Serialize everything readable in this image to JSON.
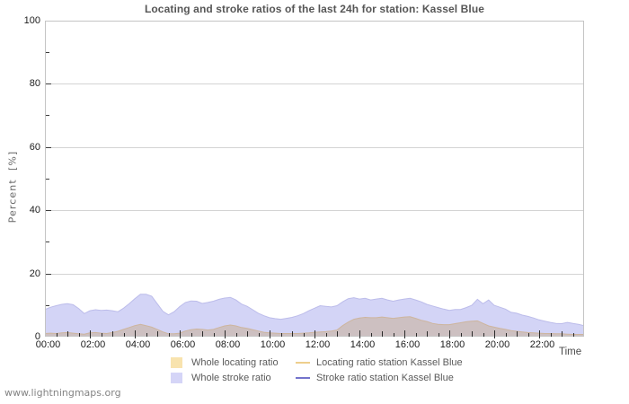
{
  "chart": {
    "title": "Locating and stroke ratios of the last 24h for station: Kassel Blue",
    "ylabel": "Percent  [%]",
    "xlabel": "Time"
  },
  "footer": {
    "watermark": "www.lightningmaps.org"
  },
  "legend": {
    "items": [
      {
        "type": "box",
        "color": "#f8e3ae",
        "label": "Whole locating ratio"
      },
      {
        "type": "box",
        "color": "#d5d5f7",
        "label": "Whole stroke ratio"
      },
      {
        "type": "line",
        "color": "#eecf8c",
        "label": "Locating ratio station Kassel Blue"
      },
      {
        "type": "line",
        "color": "#7474cc",
        "label": "Stroke ratio station Kassel Blue"
      }
    ]
  },
  "chart_data": {
    "type": "area",
    "title": "Locating and stroke ratios of the last 24h for station: Kassel Blue",
    "xlabel": "Time",
    "ylabel": "Percent  [%]",
    "ylim": [
      0,
      100
    ],
    "yticks": [
      0,
      20,
      40,
      60,
      80,
      100
    ],
    "xticks": [
      "00:00",
      "02:00",
      "04:00",
      "06:00",
      "08:00",
      "10:00",
      "12:00",
      "14:00",
      "16:00",
      "18:00",
      "20:00",
      "22:00"
    ],
    "x_hours": {
      "start": 0,
      "end": 24,
      "step": 0.25
    },
    "grid": "horizontal",
    "legend_position": "bottom",
    "series": [
      {
        "name": "Whole stroke ratio",
        "fill": "#d3d4f6",
        "edge": "#bcbcea",
        "values": [
          8.6,
          9.3,
          9.8,
          10.2,
          10.4,
          10.1,
          8.9,
          7.3,
          8.2,
          8.5,
          8.3,
          8.4,
          8.2,
          7.9,
          9.0,
          10.4,
          12.0,
          13.4,
          13.4,
          12.8,
          10.4,
          8.0,
          6.9,
          7.9,
          9.5,
          10.8,
          11.3,
          11.2,
          10.5,
          10.8,
          11.2,
          11.8,
          12.2,
          12.4,
          11.6,
          10.3,
          9.6,
          8.5,
          7.4,
          6.6,
          6.0,
          5.7,
          5.5,
          5.8,
          6.1,
          6.6,
          7.3,
          8.2,
          9.0,
          9.8,
          9.6,
          9.4,
          9.8,
          11.0,
          12.0,
          12.3,
          11.9,
          12.1,
          11.6,
          11.9,
          12.1,
          11.6,
          11.2,
          11.6,
          11.9,
          12.1,
          11.6,
          11.0,
          10.2,
          9.7,
          9.2,
          8.7,
          8.3,
          8.6,
          8.6,
          9.2,
          9.9,
          11.8,
          10.4,
          11.6,
          9.9,
          9.3,
          8.7,
          7.7,
          7.4,
          6.8,
          6.4,
          5.9,
          5.3,
          4.9,
          4.5,
          4.2,
          4.1,
          4.5,
          4.2,
          3.9,
          3.5
        ]
      },
      {
        "name": "Whole locating ratio",
        "fill": "#cdc0c1",
        "edge": "#cdb59e",
        "values": [
          1.0,
          1.1,
          1.0,
          1.2,
          1.3,
          1.1,
          0.9,
          0.8,
          1.2,
          1.3,
          1.1,
          1.0,
          1.3,
          1.7,
          2.3,
          2.9,
          3.5,
          3.9,
          3.5,
          3.0,
          2.3,
          1.5,
          0.9,
          0.9,
          1.1,
          1.8,
          2.2,
          2.4,
          2.3,
          2.1,
          2.3,
          2.9,
          3.4,
          3.7,
          3.4,
          2.9,
          2.6,
          2.2,
          1.8,
          1.4,
          1.2,
          1.1,
          1.0,
          1.0,
          1.0,
          1.0,
          1.1,
          1.2,
          1.4,
          1.5,
          1.6,
          1.8,
          2.1,
          3.5,
          4.6,
          5.5,
          5.9,
          6.1,
          6.0,
          6.0,
          6.2,
          6.0,
          5.8,
          6.0,
          6.2,
          6.3,
          5.8,
          5.2,
          4.8,
          4.2,
          3.9,
          3.8,
          3.8,
          4.1,
          4.4,
          4.7,
          4.9,
          5.0,
          4.2,
          3.4,
          3.0,
          2.6,
          2.3,
          1.9,
          1.7,
          1.5,
          1.3,
          1.2,
          1.1,
          1.0,
          1.0,
          0.9,
          0.9,
          0.8,
          0.7,
          0.7,
          0.7
        ]
      }
    ]
  }
}
